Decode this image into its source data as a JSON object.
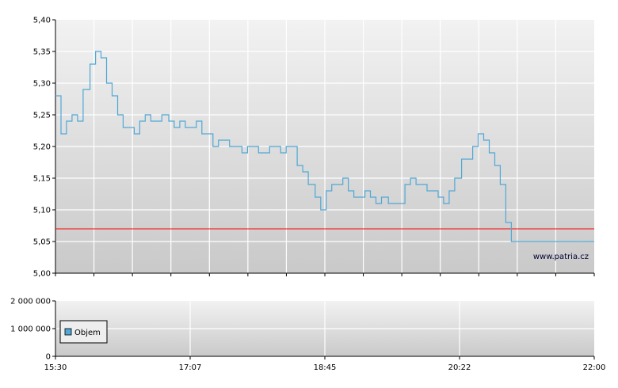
{
  "watermark": "www.patria.cz",
  "chart_data": [
    {
      "type": "line",
      "title": "",
      "xlabel": "",
      "ylabel": "",
      "ylim": [
        5.0,
        5.4
      ],
      "y_ticks": [
        "5,00",
        "5,05",
        "5,10",
        "5,15",
        "5,20",
        "5,25",
        "5,30",
        "5,35",
        "5,40"
      ],
      "x_range": [
        "15:30",
        "22:00"
      ],
      "grid": true,
      "reference_line": {
        "value": 5.07,
        "color": "#ff0000"
      },
      "line_color": "#4fa8d6",
      "series": [
        {
          "x": [
            "15:30",
            "15:34",
            "15:38",
            "15:42",
            "15:46",
            "15:50",
            "15:55",
            "15:59",
            "16:03",
            "16:07",
            "16:11",
            "16:15",
            "16:19",
            "16:23",
            "16:27",
            "16:31",
            "16:35",
            "16:39",
            "16:43",
            "16:47",
            "16:52",
            "16:56",
            "17:00",
            "17:04",
            "17:08",
            "17:12",
            "17:16",
            "17:20",
            "17:24",
            "17:28",
            "17:32",
            "17:36",
            "17:40",
            "17:45",
            "17:49",
            "17:53",
            "17:57",
            "18:01",
            "18:05",
            "18:09",
            "18:13",
            "18:17",
            "18:21",
            "18:25",
            "18:29",
            "18:33",
            "18:38",
            "18:42",
            "18:46",
            "18:50",
            "18:54",
            "18:58",
            "19:02",
            "19:06",
            "19:10",
            "19:14",
            "19:18",
            "19:22",
            "19:26",
            "19:31",
            "19:35",
            "19:39",
            "19:43",
            "19:47",
            "19:51",
            "19:55",
            "19:59",
            "20:03",
            "20:07",
            "20:11",
            "20:15",
            "20:19",
            "20:24",
            "20:28",
            "20:32",
            "20:36",
            "20:40",
            "20:44",
            "20:48",
            "20:52",
            "20:56",
            "21:00",
            "21:04",
            "21:08",
            "21:12",
            "21:17",
            "21:21",
            "21:25",
            "21:29",
            "21:33",
            "21:37",
            "21:41",
            "21:45",
            "21:49",
            "21:53",
            "21:57",
            "22:00"
          ],
          "values": [
            5.28,
            5.22,
            5.24,
            5.25,
            5.24,
            5.29,
            5.33,
            5.35,
            5.34,
            5.3,
            5.28,
            5.25,
            5.23,
            5.23,
            5.22,
            5.24,
            5.25,
            5.24,
            5.24,
            5.25,
            5.24,
            5.23,
            5.24,
            5.23,
            5.23,
            5.24,
            5.22,
            5.22,
            5.2,
            5.21,
            5.21,
            5.2,
            5.2,
            5.19,
            5.2,
            5.2,
            5.19,
            5.19,
            5.2,
            5.2,
            5.19,
            5.2,
            5.2,
            5.17,
            5.16,
            5.14,
            5.12,
            5.1,
            5.13,
            5.14,
            5.14,
            5.15,
            5.13,
            5.12,
            5.12,
            5.13,
            5.12,
            5.11,
            5.12,
            5.11,
            5.11,
            5.11,
            5.14,
            5.15,
            5.14,
            5.14,
            5.13,
            5.13,
            5.12,
            5.11,
            5.13,
            5.15,
            5.18,
            5.18,
            5.2,
            5.22,
            5.21,
            5.19,
            5.17,
            5.14,
            5.08,
            5.05,
            5.05,
            5.05,
            5.05,
            5.05,
            5.05,
            5.05,
            5.05,
            5.05,
            5.05,
            5.05,
            5.05,
            5.05,
            5.05,
            5.05,
            5.05
          ]
        }
      ]
    },
    {
      "type": "bar",
      "title": "",
      "xlabel": "",
      "ylabel": "",
      "ylim": [
        0,
        2000000
      ],
      "y_ticks": [
        "0",
        "1 000 000",
        "2 000 000"
      ],
      "x_ticks": [
        "15:30",
        "17:07",
        "18:45",
        "20:22",
        "22:00"
      ],
      "grid": true,
      "legend": {
        "position": "left",
        "entries": [
          "Objem"
        ]
      },
      "bar_color": "#4fa8d6",
      "series": [
        {
          "name": "Objem",
          "values": []
        }
      ]
    }
  ]
}
